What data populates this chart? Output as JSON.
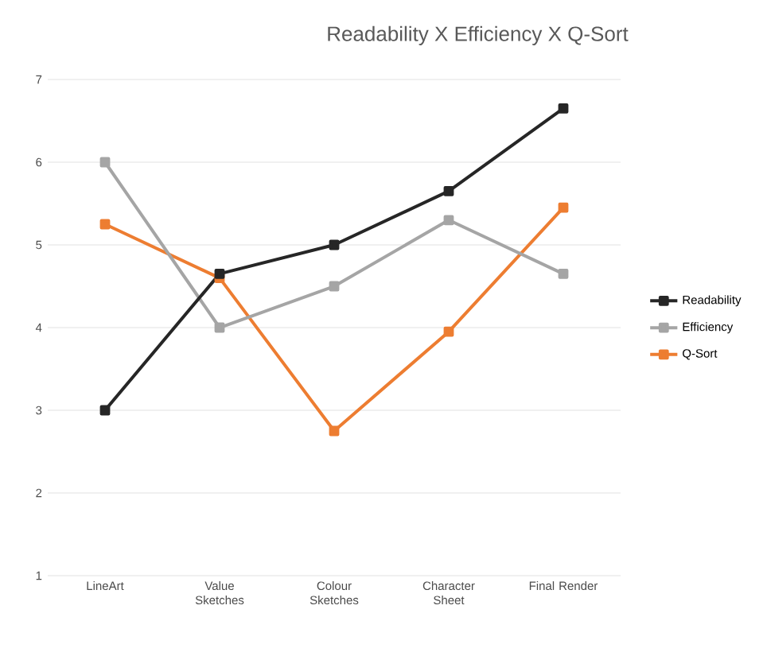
{
  "chart_data": {
    "type": "line",
    "title": "Readability X Efficiency X Q-Sort",
    "categories": [
      "LineArt",
      "Value Sketches",
      "Colour Sketches",
      "Character Sheet",
      "Final Render"
    ],
    "series": [
      {
        "name": "Readability",
        "color": "#262626",
        "values": [
          3,
          4.65,
          5,
          5.65,
          6.65
        ]
      },
      {
        "name": "Efficiency",
        "color": "#a5a5a5",
        "values": [
          6,
          4,
          4.5,
          5.3,
          4.65
        ]
      },
      {
        "name": "Q-Sort",
        "color": "#ed7d31",
        "values": [
          5.25,
          4.6,
          2.75,
          3.95,
          5.45
        ]
      }
    ],
    "ylim": [
      1,
      7
    ],
    "yticks": [
      1,
      2,
      3,
      4,
      5,
      6,
      7
    ],
    "grid": "y",
    "legend": "right",
    "marker": "square",
    "line_style": "solid"
  }
}
